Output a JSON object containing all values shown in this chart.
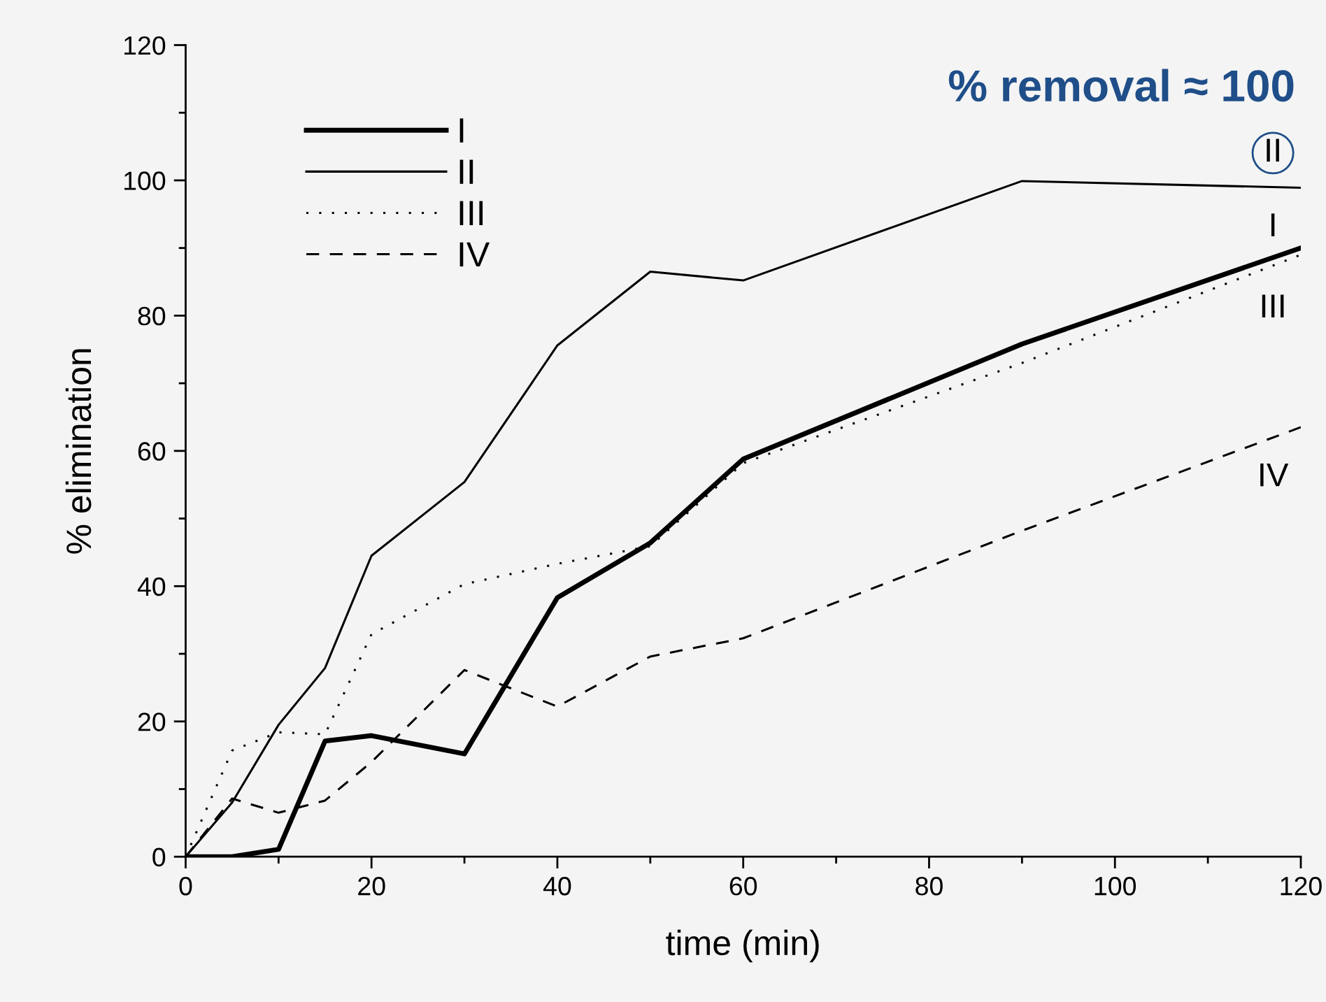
{
  "chart_data": {
    "type": "line",
    "xlabel": "time (min)",
    "ylabel": "% elimination",
    "x": [
      0,
      5,
      10,
      15,
      20,
      30,
      40,
      50,
      60,
      90,
      120
    ],
    "series": [
      {
        "name": "I",
        "color": "#000000",
        "line_style": "solid",
        "values": [
          0,
          0,
          1.1,
          17.1,
          17.9,
          15.2,
          38.3,
          46.4,
          58.8,
          75.8,
          90
        ]
      },
      {
        "name": "II",
        "color": "#000000",
        "line_style": "solid",
        "values": [
          0,
          8,
          19.5,
          27.9,
          44.5,
          55.4,
          75.6,
          86.5,
          85.2,
          99.9,
          98.9
        ]
      },
      {
        "name": "III",
        "color": "#000000",
        "line_style": "dotted",
        "values": [
          0,
          15.7,
          18.4,
          18.1,
          32.9,
          40.3,
          43.3,
          45.9,
          58.2,
          73,
          89
        ]
      },
      {
        "name": "IV",
        "color": "#000000",
        "line_style": "dashed",
        "values": [
          0,
          8.6,
          6.5,
          8.3,
          14,
          27.6,
          22.2,
          29.6,
          32.3,
          48.2,
          63.5
        ]
      }
    ],
    "xlim": [
      0,
      120
    ],
    "xticks": [
      0,
      20,
      40,
      60,
      80,
      100,
      120
    ],
    "ylim": [
      0,
      120
    ],
    "yticks": [
      0,
      20,
      40,
      60,
      80,
      100,
      120
    ],
    "grid": false,
    "legend": "top left",
    "marker": "none",
    "annotations": [
      "% removal ≈ 100",
      "II",
      "I",
      "III",
      "IV"
    ]
  }
}
